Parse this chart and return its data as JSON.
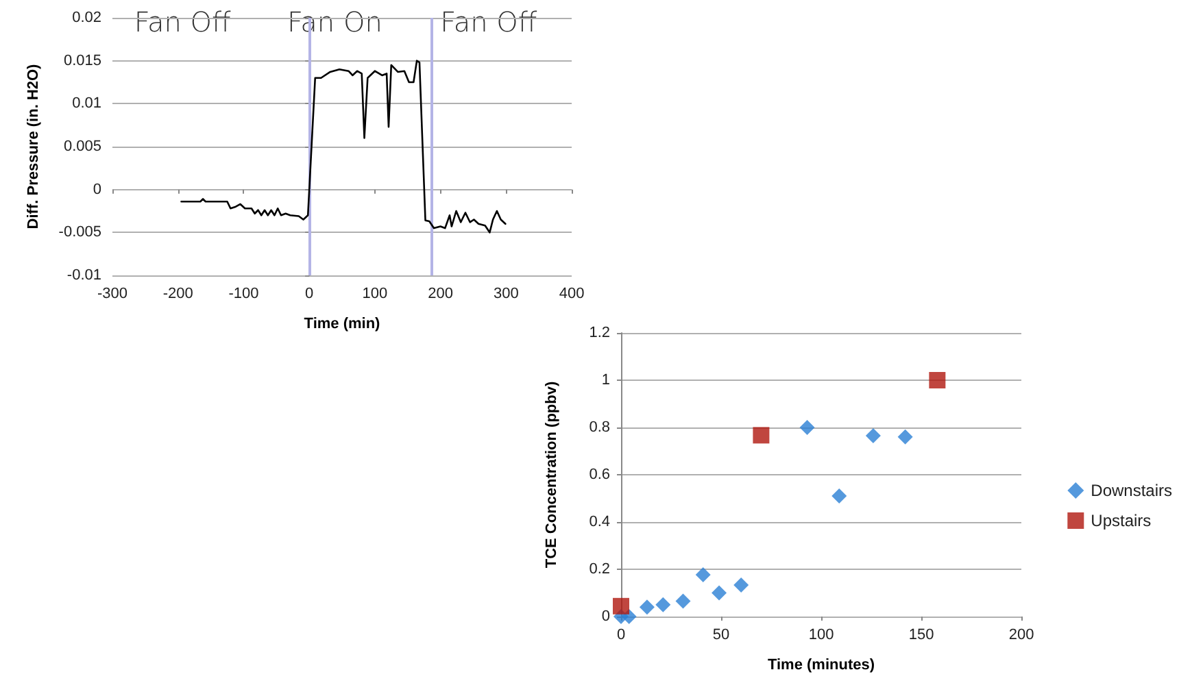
{
  "chart_data": [
    {
      "type": "line",
      "xlabel": "Time (min)",
      "ylabel": "Diff. Pressure (in. H2O)",
      "annotations": [
        "Fan Off",
        "Fan On",
        "Fan Off"
      ],
      "xlim": [
        -300,
        400
      ],
      "xticks": [
        -300,
        -200,
        -100,
        0,
        100,
        200,
        300,
        400
      ],
      "ylim": [
        -0.01,
        0.02
      ],
      "yticks": [
        -0.01,
        -0.005,
        0,
        0.005,
        0.01,
        0.015,
        0.02
      ],
      "grid": "y",
      "marker": "none",
      "line_style": "solid",
      "ref_lines": [
        {
          "axis": "x",
          "value": 0,
          "color": "#b4b4e6"
        },
        {
          "axis": "x",
          "value": 186,
          "color": "#b4b4e6"
        }
      ],
      "series": [
        {
          "color": "#000000",
          "x": [
            -195,
            -166,
            -162,
            -158,
            -125,
            -120,
            -112,
            -105,
            -98,
            -88,
            -83,
            -78,
            -73,
            -68,
            -63,
            -58,
            -53,
            -48,
            -43,
            -36,
            -29,
            -16,
            -9,
            -2,
            9,
            18,
            32,
            46,
            60,
            66,
            73,
            80,
            84,
            89,
            100,
            111,
            118,
            121,
            125,
            135,
            145,
            152,
            159,
            164,
            168,
            177,
            183,
            190,
            200,
            207,
            214,
            217,
            224,
            231,
            238,
            245,
            251,
            258,
            268,
            275,
            280,
            286,
            292,
            299
          ],
          "values": [
            -0.0014,
            -0.0014,
            -0.0011,
            -0.0014,
            -0.0014,
            -0.0022,
            -0.002,
            -0.0017,
            -0.0022,
            -0.0022,
            -0.0028,
            -0.0024,
            -0.003,
            -0.0024,
            -0.003,
            -0.0024,
            -0.003,
            -0.0022,
            -0.003,
            -0.0028,
            -0.003,
            -0.0031,
            -0.0035,
            -0.003,
            0.013,
            0.013,
            0.0137,
            0.014,
            0.0138,
            0.0133,
            0.0138,
            0.0135,
            0.006,
            0.013,
            0.0138,
            0.0133,
            0.0135,
            0.0073,
            0.0145,
            0.0137,
            0.0138,
            0.0125,
            0.0125,
            0.015,
            0.0148,
            -0.0036,
            -0.0037,
            -0.0045,
            -0.0043,
            -0.0045,
            -0.003,
            -0.0043,
            -0.0025,
            -0.0038,
            -0.0027,
            -0.0038,
            -0.0035,
            -0.004,
            -0.0042,
            -0.005,
            -0.0035,
            -0.0025,
            -0.0035,
            -0.004
          ]
        }
      ]
    },
    {
      "type": "scatter",
      "xlabel": "Time (minutes)",
      "ylabel": "TCE Concentration (ppbv)",
      "xlim": [
        0,
        200
      ],
      "xticks": [
        0,
        50,
        100,
        150,
        200
      ],
      "ylim": [
        0,
        1.2
      ],
      "yticks": [
        0,
        0.2,
        0.4,
        0.6,
        0.8,
        1,
        1.2
      ],
      "grid": "y",
      "legend": "right",
      "series": [
        {
          "name": "Downstairs",
          "color": "#2a7fd4",
          "marker": "diamond",
          "x": [
            0,
            4,
            13,
            21,
            31,
            41,
            49,
            60,
            93,
            109,
            126,
            142
          ],
          "values": [
            0,
            0,
            0.04,
            0.05,
            0.065,
            0.177,
            0.1,
            0.133,
            0.8,
            0.51,
            0.765,
            0.76
          ]
        },
        {
          "name": "Upstairs",
          "color": "#b0180f",
          "marker": "square",
          "x": [
            0,
            70,
            158
          ],
          "values": [
            0.044,
            0.767,
            1.0
          ]
        }
      ]
    }
  ]
}
